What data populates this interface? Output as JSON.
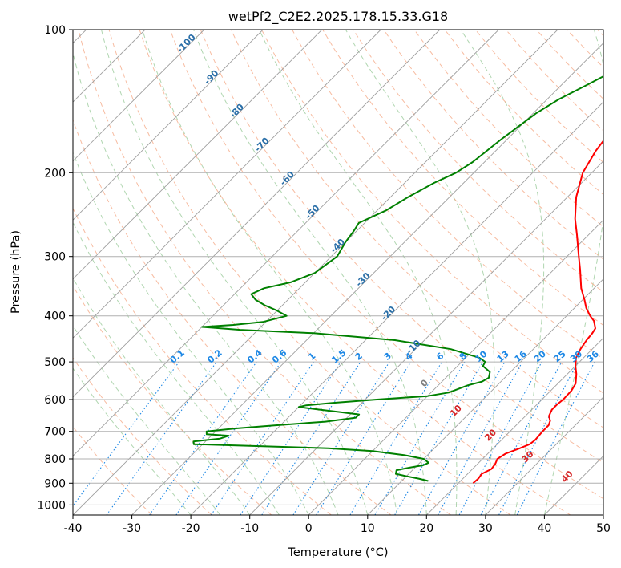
{
  "chart_data": {
    "type": "line",
    "subtype": "skew-t log-p diagram",
    "title": "wetPf2_C2E2.2025.178.15.33.G18",
    "xlabel": "Temperature (°C)",
    "ylabel": "Pressure (hPa)",
    "xlim": [
      -40,
      50
    ],
    "ylim": [
      1050,
      100
    ],
    "y_scale": "log",
    "x_ticks": [
      -40,
      -30,
      -20,
      -10,
      0,
      10,
      20,
      30,
      40,
      50
    ],
    "y_ticks": [
      100,
      200,
      300,
      400,
      500,
      600,
      700,
      800,
      900,
      1000
    ],
    "grid": true,
    "series": [
      {
        "color": "#ff0000",
        "points": [
          [
            900,
            22.5
          ],
          [
            880,
            22.6
          ],
          [
            860,
            22.4
          ],
          [
            840,
            23.2
          ],
          [
            820,
            23.0
          ],
          [
            800,
            22.5
          ],
          [
            780,
            23.0
          ],
          [
            760,
            24.5
          ],
          [
            745,
            25.5
          ],
          [
            730,
            25.7
          ],
          [
            700,
            25.5
          ],
          [
            680,
            25.5
          ],
          [
            665,
            25.0
          ],
          [
            650,
            24.0
          ],
          [
            630,
            23.4
          ],
          [
            615,
            23.4
          ],
          [
            600,
            23.6
          ],
          [
            575,
            23.5
          ],
          [
            555,
            23.0
          ],
          [
            530,
            21.5
          ],
          [
            510,
            20.0
          ],
          [
            490,
            18.7
          ],
          [
            470,
            18.0
          ],
          [
            450,
            17.5
          ],
          [
            435,
            17.3
          ],
          [
            425,
            17.0
          ],
          [
            410,
            15.5
          ],
          [
            400,
            14.0
          ],
          [
            385,
            12.0
          ],
          [
            370,
            10.3
          ],
          [
            350,
            7.8
          ],
          [
            320,
            4.5
          ],
          [
            300,
            2.0
          ],
          [
            270,
            -2.0
          ],
          [
            250,
            -5.0
          ],
          [
            225,
            -8.5
          ],
          [
            200,
            -11.5
          ],
          [
            180,
            -13.0
          ],
          [
            160,
            -14.0
          ],
          [
            145,
            -15.0
          ],
          [
            130,
            -14.5
          ],
          [
            120,
            -13.5
          ],
          [
            110,
            -12.5
          ],
          [
            100,
            -10.8
          ]
        ]
      },
      {
        "color": "#008000",
        "points": [
          [
            890,
            14.5
          ],
          [
            880,
            12.5
          ],
          [
            870,
            10.0
          ],
          [
            860,
            7.8
          ],
          [
            845,
            7.3
          ],
          [
            835,
            9.0
          ],
          [
            825,
            11.0
          ],
          [
            815,
            11.5
          ],
          [
            800,
            10.0
          ],
          [
            785,
            6.0
          ],
          [
            770,
            0.0
          ],
          [
            760,
            -8.0
          ],
          [
            752,
            -20.0
          ],
          [
            745,
            -31.5
          ],
          [
            735,
            -32.0
          ],
          [
            725,
            -28.0
          ],
          [
            715,
            -27.0
          ],
          [
            710,
            -31.0
          ],
          [
            700,
            -31.5
          ],
          [
            690,
            -27.0
          ],
          [
            680,
            -21.0
          ],
          [
            668,
            -13.0
          ],
          [
            655,
            -8.5
          ],
          [
            645,
            -8.5
          ],
          [
            638,
            -12.0
          ],
          [
            630,
            -16.0
          ],
          [
            622,
            -20.0
          ],
          [
            617,
            -19.0
          ],
          [
            610,
            -15.0
          ],
          [
            600,
            -8.0
          ],
          [
            590,
            0.0
          ],
          [
            580,
            3.0
          ],
          [
            570,
            4.0
          ],
          [
            560,
            5.0
          ],
          [
            550,
            6.8
          ],
          [
            540,
            7.3
          ],
          [
            525,
            6.5
          ],
          [
            510,
            4.3
          ],
          [
            500,
            4.0
          ],
          [
            490,
            2.3
          ],
          [
            470,
            -4.0
          ],
          [
            450,
            -15.0
          ],
          [
            435,
            -30.0
          ],
          [
            428,
            -43.0
          ],
          [
            422,
            -50.0
          ],
          [
            418,
            -45.0
          ],
          [
            412,
            -40.5
          ],
          [
            400,
            -37.5
          ],
          [
            390,
            -40.0
          ],
          [
            380,
            -43.0
          ],
          [
            370,
            -45.5
          ],
          [
            360,
            -47.2
          ],
          [
            350,
            -46.0
          ],
          [
            340,
            -42.5
          ],
          [
            325,
            -40.0
          ],
          [
            300,
            -39.0
          ],
          [
            280,
            -40.0
          ],
          [
            265,
            -40.5
          ],
          [
            255,
            -41.0
          ],
          [
            240,
            -38.5
          ],
          [
            225,
            -37.0
          ],
          [
            210,
            -35.0
          ],
          [
            200,
            -33.0
          ],
          [
            190,
            -32.0
          ],
          [
            170,
            -31.0
          ],
          [
            150,
            -29.5
          ],
          [
            140,
            -28.0
          ],
          [
            130,
            -25.5
          ],
          [
            120,
            -23.0
          ],
          [
            110,
            -19.5
          ],
          [
            100,
            -16.0
          ]
        ]
      }
    ],
    "reference_lines": {
      "mixing_ratio_labels": [
        "0.1",
        "0.2",
        "0.4",
        "0.6",
        "1",
        "1.5",
        "2",
        "3",
        "4",
        "6",
        "8",
        "10",
        "13",
        "16",
        "20",
        "25",
        "30",
        "36"
      ],
      "dry_adiabat_labels": [
        "-100",
        "-90",
        "-80",
        "-70",
        "-60",
        "-50",
        "-40",
        "-30",
        "-20",
        "-10"
      ],
      "moist_adiabat_labels": [
        "0",
        "10",
        "20",
        "30",
        "40"
      ]
    }
  }
}
